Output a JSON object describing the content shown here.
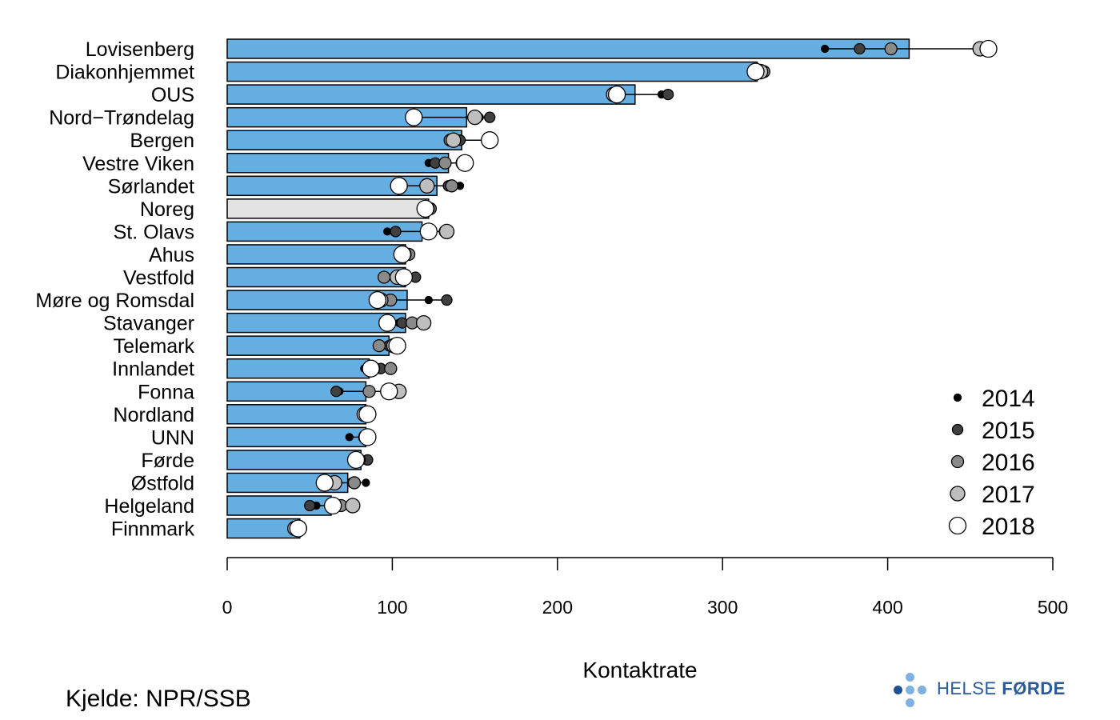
{
  "chart_data": {
    "type": "bar",
    "orientation": "horizontal",
    "xlabel": "Kontaktrate",
    "xlim": [
      0,
      500
    ],
    "xticks": [
      0,
      100,
      200,
      300,
      400,
      500
    ],
    "legend_position": "bottom-right",
    "colors": {
      "bar": "#64aee2",
      "highlight_bar": "#e3e3e3",
      "bar_edge": "#000000"
    },
    "highlight_category": "Noreg",
    "categories": [
      "Lovisenberg",
      "Diakonhjemmet",
      "OUS",
      "Nord−Trøndelag",
      "Bergen",
      "Vestre Viken",
      "Sørlandet",
      "Noreg",
      "St. Olavs",
      "Ahus",
      "Vestfold",
      "Møre og Romsdal",
      "Stavanger",
      "Telemark",
      "Innlandet",
      "Fonna",
      "Nordland",
      "UNN",
      "Førde",
      "Østfold",
      "Helgeland",
      "Finnmark"
    ],
    "values": [
      413,
      321,
      247,
      145,
      142,
      134,
      127,
      122,
      118,
      108,
      108,
      109,
      108,
      98,
      86,
      84,
      84,
      84,
      81,
      73,
      63,
      44
    ],
    "series": [
      {
        "name": "2014",
        "color": "#000000",
        "radius": 4.5,
        "values": [
          362,
          320,
          263,
          153,
          136,
          122,
          141,
          120,
          97,
          111,
          112,
          122,
          104,
          93,
          83,
          68,
          84,
          74,
          82,
          84,
          54,
          43
        ]
      },
      {
        "name": "2015",
        "color": "#404040",
        "radius": 6.5,
        "values": [
          383,
          319,
          267,
          159,
          141,
          126,
          134,
          122,
          102,
          108,
          114,
          133,
          106,
          98,
          93,
          66,
          84,
          86,
          85,
          76,
          50,
          45
        ]
      },
      {
        "name": "2016",
        "color": "#8a8a8a",
        "radius": 7.5,
        "values": [
          402,
          325,
          237,
          151,
          135,
          132,
          136,
          123,
          132,
          110,
          95,
          99,
          112,
          92,
          99,
          86,
          84,
          85,
          80,
          77,
          69,
          42
        ]
      },
      {
        "name": "2017",
        "color": "#bebebe",
        "radius": 9,
        "values": [
          456,
          323,
          234,
          150,
          137,
          143,
          121,
          121,
          133,
          107,
          103,
          93,
          119,
          101,
          88,
          104,
          83,
          84,
          78,
          65,
          76,
          41
        ]
      },
      {
        "name": "2018",
        "color": "#ffffff",
        "radius": 10.5,
        "values": [
          461,
          320,
          236,
          113,
          159,
          144,
          104,
          120,
          122,
          106,
          107,
          91,
          97,
          103,
          87,
          98,
          85,
          85,
          78,
          59,
          64,
          43
        ]
      }
    ]
  },
  "source": "Kjelde: NPR/SSB",
  "logo": {
    "text_light": "HELSE",
    "text_bold": "FØRDE",
    "color": "#2a5a9a"
  }
}
